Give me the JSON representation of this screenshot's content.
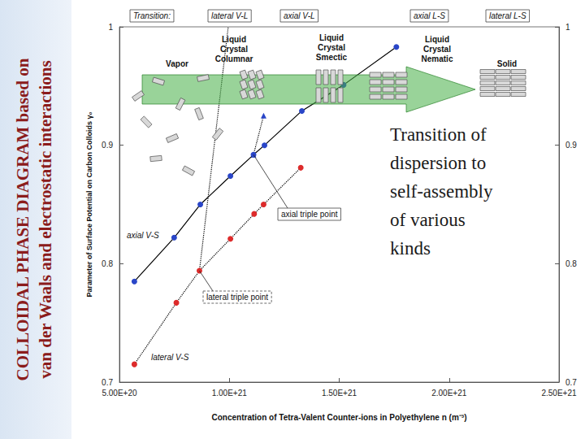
{
  "side_title": [
    "COLLOIDAL PHASE DIAGRAM based on",
    "van der Waals and electrostatic interactions"
  ],
  "note": [
    "Transition of",
    "dispersion to",
    "self-assembly",
    "of various",
    "kinds"
  ],
  "chart_data": {
    "type": "line",
    "x_label": "Concentration of Tetra-Valent Counter-ions in Polyethylene n (m⁻³)",
    "y_label": "Parameter of Surface Potential on Carbon Colloids γ₀",
    "xlim": [
      5e+20,
      2.5e+21
    ],
    "xticks": [
      {
        "value": 5e+20,
        "label": "5.00E+20"
      },
      {
        "value": 1e+21,
        "label": "1.00E+21"
      },
      {
        "value": 1.5e+21,
        "label": "1.50E+21"
      },
      {
        "value": 2e+21,
        "label": "2.00E+21"
      },
      {
        "value": 2.5e+21,
        "label": "2.50E+21"
      }
    ],
    "ylim": [
      0.7,
      1
    ],
    "yticks": [
      0.7,
      0.8,
      0.9,
      1
    ],
    "y2lim": [
      0.7,
      1
    ],
    "y2ticks": [
      0.7,
      0.8,
      0.9,
      1
    ],
    "grid": false,
    "header": [
      "Transition:",
      "lateral V-L",
      "axial V-L",
      "axial L-S",
      "lateral L-S"
    ],
    "phases": [
      "Vapor",
      "Liquid Crystal Columnar",
      "Liquid Crystal Smectic",
      "Liquid Crystal Nematic",
      "Solid"
    ],
    "annotations": [
      {
        "text": "axial triple point",
        "point": [
          1.11e+21,
          0.892
        ],
        "line_style": "solid"
      },
      {
        "text": "lateral triple point",
        "point": [
          8.64e+20,
          0.794
        ],
        "line_style": "dashed"
      }
    ],
    "series": [
      {
        "name": "axial V-S",
        "color": "#2a46c8",
        "marker": "circle",
        "line_style": "solid",
        "x": [
          5.68e+20,
          7.49e+20,
          8.68e+20,
          1.005e+21,
          1.11e+21,
          1.16e+21,
          1.33e+21,
          1.52e+21,
          1.76e+21
        ],
        "values": [
          0.785,
          0.822,
          0.85,
          0.874,
          0.892,
          0.9,
          0.929,
          0.951,
          0.983
        ]
      },
      {
        "name": "lateral V-S",
        "color": "#dd2b2b",
        "marker": "circle",
        "line_style": "dotted",
        "x": [
          5.68e+20,
          7.59e+20,
          8.64e+20,
          1.005e+21,
          1.113e+21,
          1.156e+21,
          1.325e+21
        ],
        "values": [
          0.715,
          0.767,
          0.794,
          0.821,
          0.842,
          0.85,
          0.881
        ]
      },
      {
        "color": "#2a46c8",
        "marker": "triangle",
        "line_style": "dotted",
        "x": [
          1.11e+21,
          1.156e+21
        ],
        "values": [
          0.892,
          0.925
        ]
      },
      {
        "marker": "none",
        "line_style": "dotted",
        "x": [
          8.64e+20,
          9.95e+20
        ],
        "values": [
          0.794,
          1.0
        ]
      }
    ]
  }
}
